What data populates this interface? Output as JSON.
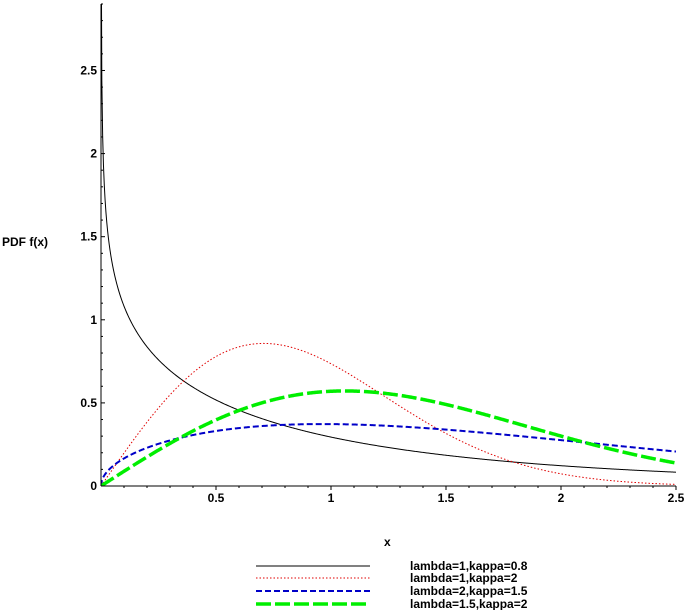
{
  "chart_data": {
    "type": "line",
    "title": "",
    "xlabel": "x",
    "ylabel": "PDF f(x)",
    "xlim": [
      0,
      2.5
    ],
    "ylim": [
      0,
      2.9
    ],
    "x_ticks": [
      {
        "value": 0.5,
        "label": "0.5"
      },
      {
        "value": 1,
        "label": "1"
      },
      {
        "value": 1.5,
        "label": "1.5"
      },
      {
        "value": 2,
        "label": "2"
      },
      {
        "value": 2.5,
        "label": "2.5"
      }
    ],
    "y_ticks": [
      {
        "value": 0,
        "label": "0"
      },
      {
        "value": 0.5,
        "label": "0.5"
      },
      {
        "value": 1,
        "label": "1"
      },
      {
        "value": 1.5,
        "label": "1.5"
      },
      {
        "value": 2,
        "label": "2"
      },
      {
        "value": 2.5,
        "label": "2.5"
      }
    ],
    "legend_position": "bottom",
    "grid": false,
    "distribution": "Weibull",
    "series": [
      {
        "name": "lambda=1,kappa=0.8",
        "lambda": 1,
        "kappa": 0.8,
        "color": "#000000",
        "style": "solid"
      },
      {
        "name": "lambda=1,kappa=2",
        "lambda": 1,
        "kappa": 2,
        "color": "#e00000",
        "style": "dotted"
      },
      {
        "name": "lambda=2,kappa=1.5",
        "lambda": 2,
        "kappa": 1.5,
        "color": "#0000c8",
        "style": "dashed"
      },
      {
        "name": "lambda=1.5,kappa=2",
        "lambda": 1.5,
        "kappa": 2,
        "color": "#00ee00",
        "style": "longdash"
      }
    ]
  }
}
